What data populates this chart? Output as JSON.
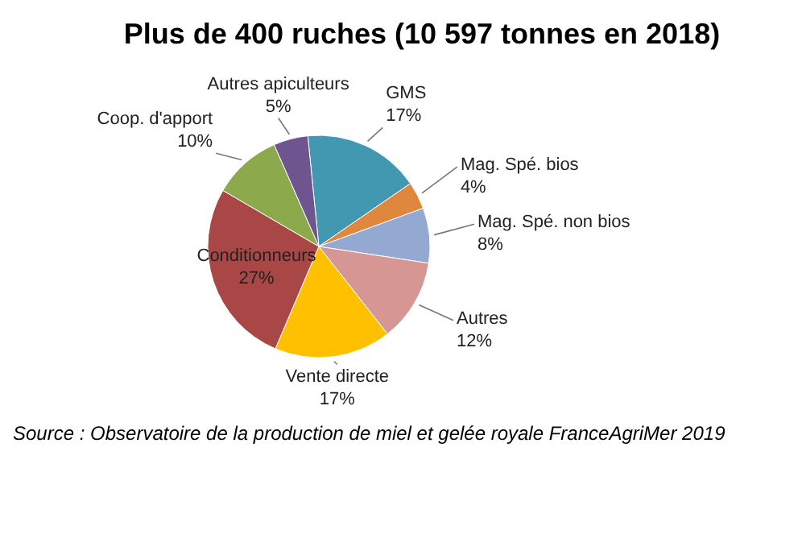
{
  "chart_data": {
    "type": "pie",
    "title": "Plus de 400 ruches (10 597 tonnes en 2018)",
    "categories": [
      "GMS",
      "Mag. Spé. bios",
      "Mag. Spé. non bios",
      "Autres",
      "Vente directe",
      "Conditionneurs",
      "Coop. d'apport",
      "Autres apiculteurs"
    ],
    "values": [
      17,
      4,
      8,
      12,
      17,
      27,
      10,
      5
    ],
    "value_labels": [
      "17%",
      "4%",
      "8%",
      "12%",
      "17%",
      "27%",
      "10%",
      "5%"
    ],
    "colors": [
      "#4198b0",
      "#e0873e",
      "#94a9d2",
      "#d69694",
      "#ffc000",
      "#a84745",
      "#8ca94c",
      "#6e5590"
    ],
    "annotations": [
      "Source : Observatoire de la production de miel et gelée royale FranceAgriMer 2019"
    ]
  }
}
